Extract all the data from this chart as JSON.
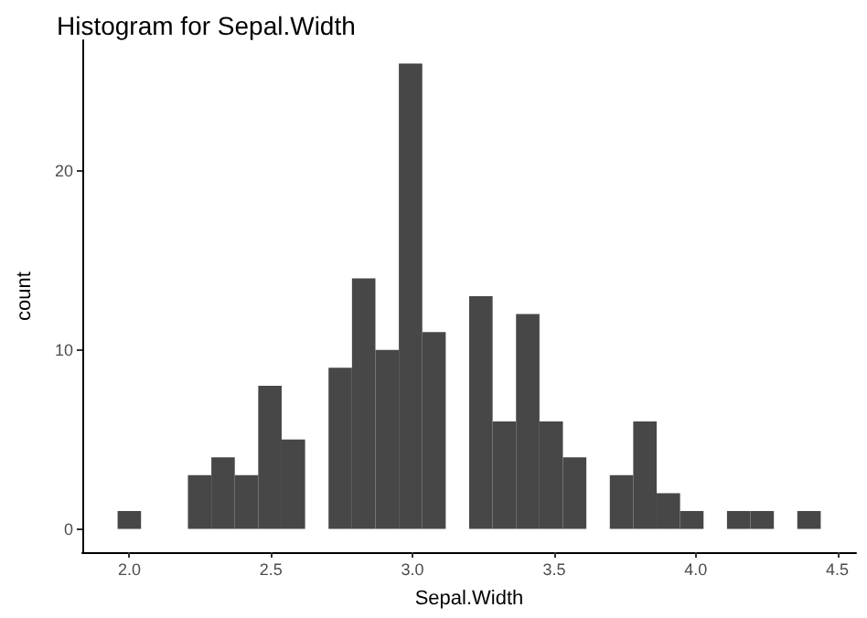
{
  "chart_data": {
    "type": "histogram",
    "title": "Histogram for Sepal.Width",
    "xlabel": "Sepal.Width",
    "ylabel": "count",
    "bins": [
      1.9586,
      2.0414,
      2.1241,
      2.2069,
      2.2897,
      2.3724,
      2.4552,
      2.5379,
      2.6207,
      2.7034,
      2.7862,
      2.869,
      2.9517,
      3.0345,
      3.1172,
      3.2,
      3.2828,
      3.3655,
      3.4483,
      3.531,
      3.6138,
      3.6966,
      3.7793,
      3.8621,
      3.9448,
      4.0276,
      4.1103,
      4.1931,
      4.2759,
      4.3586,
      4.4414
    ],
    "values": [
      1,
      0,
      0,
      3,
      4,
      3,
      8,
      5,
      0,
      9,
      14,
      10,
      26,
      11,
      0,
      13,
      6,
      12,
      6,
      4,
      0,
      3,
      6,
      2,
      1,
      0,
      1,
      1,
      0,
      1
    ],
    "color": "#474747",
    "xlim": [
      1.834,
      4.566
    ],
    "xticks": [
      {
        "value": 2,
        "label": "2.0"
      },
      {
        "value": 2.5,
        "label": "2.5"
      },
      {
        "value": 3,
        "label": "3.0"
      },
      {
        "value": 3.5,
        "label": "3.5"
      },
      {
        "value": 4,
        "label": "4.0"
      },
      {
        "value": 4.5,
        "label": "4.5"
      }
    ],
    "ylim": [
      -1.3,
      27.3
    ],
    "yticks": [
      0,
      10,
      20
    ],
    "grid": false
  }
}
